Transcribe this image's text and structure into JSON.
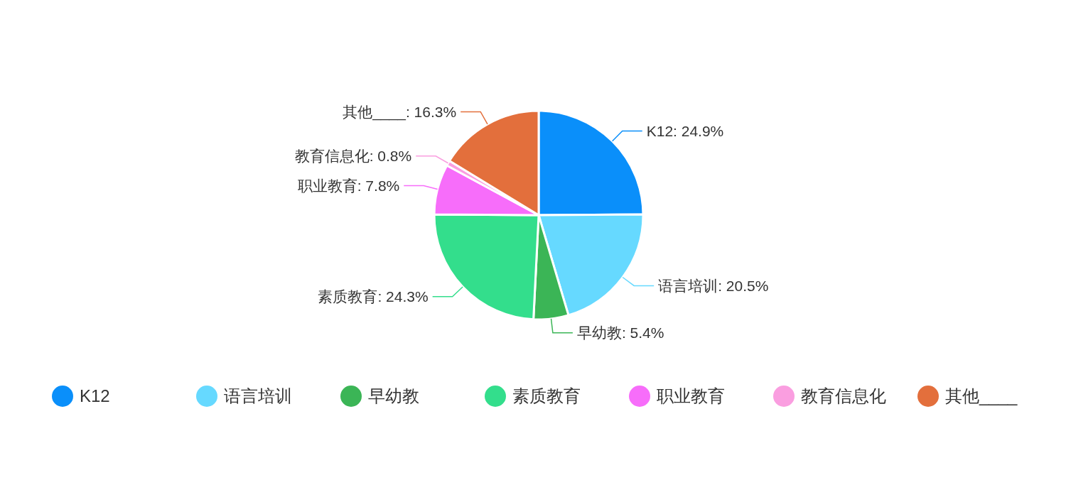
{
  "chart_data": {
    "type": "pie",
    "categories": [
      "K12",
      "语言培训",
      "早幼教",
      "素质教育",
      "职业教育",
      "教育信息化",
      "其他____"
    ],
    "values": [
      24.9,
      20.5,
      5.4,
      24.3,
      7.8,
      0.8,
      16.3
    ],
    "value_labels": [
      "K12: 24.9%",
      "语言培训: 20.5%",
      "早幼教: 5.4%",
      "素质教育: 24.3%",
      "职业教育: 7.8%",
      "教育信息化: 0.8%",
      "其他____: 16.3%"
    ],
    "colors": [
      "#0a8ffa",
      "#66d9ff",
      "#3bb556",
      "#33de8c",
      "#f76dfa",
      "#fa9ee0",
      "#e36f3c"
    ],
    "legend": "bottom"
  }
}
